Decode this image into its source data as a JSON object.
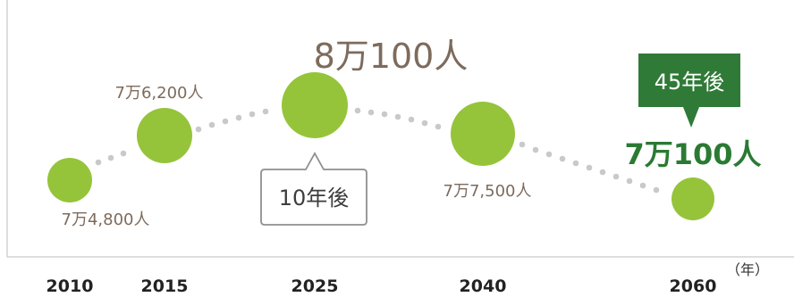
{
  "chart_data": {
    "type": "scatter",
    "x_unit_label": "（年）",
    "points": [
      {
        "year": "2010",
        "value_label": "7万4,800人",
        "emphasis": "normal"
      },
      {
        "year": "2015",
        "value_label": "7万6,200人",
        "emphasis": "normal"
      },
      {
        "year": "2025",
        "value_label": "8万100人",
        "emphasis": "large"
      },
      {
        "year": "2040",
        "value_label": "7万7,500人",
        "emphasis": "normal"
      },
      {
        "year": "2060",
        "value_label": "7万100人",
        "emphasis": "highlight"
      }
    ],
    "annotations": [
      {
        "text": "10年後",
        "target_year": "2025",
        "style": "outlined"
      },
      {
        "text": "45年後",
        "target_year": "2060",
        "style": "filled"
      }
    ],
    "colors": {
      "bubble": "#95c43a",
      "dots": "#c7c9cb",
      "highlight": "#2f7a37",
      "label": "#7d6b5c"
    }
  }
}
